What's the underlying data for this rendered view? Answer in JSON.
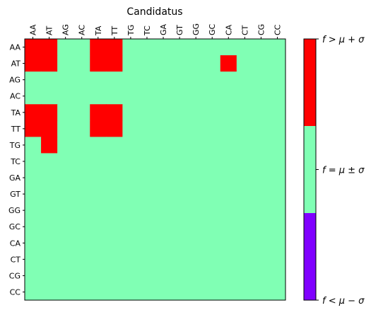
{
  "chart_data": {
    "type": "heatmap",
    "title": "Candidatus",
    "xlabel": "",
    "ylabel": "",
    "x_categories": [
      "AA",
      "AT",
      "AG",
      "AC",
      "TA",
      "TT",
      "TG",
      "TC",
      "GA",
      "GT",
      "GG",
      "GC",
      "CA",
      "CT",
      "CG",
      "CC"
    ],
    "y_categories": [
      "AA",
      "AT",
      "AG",
      "AC",
      "TA",
      "TT",
      "TG",
      "TC",
      "GA",
      "GT",
      "GG",
      "GC",
      "CA",
      "CT",
      "CG",
      "CC"
    ],
    "x_axis_position": "top",
    "grid": false,
    "color_levels": [
      {
        "value": -1,
        "color": "#8000ff",
        "label": "f < μ − σ"
      },
      {
        "value": 0,
        "color": "#80ffb4",
        "label": "f = μ ± σ"
      },
      {
        "value": 1,
        "color": "#ff0000",
        "label": "f > μ + σ"
      }
    ],
    "colorbar_ticks": [
      "f > μ + σ",
      "f = μ ± σ",
      "f < μ − σ"
    ],
    "values": [
      [
        1,
        1,
        0,
        0,
        1,
        1,
        0,
        0,
        0,
        0,
        0,
        0,
        0,
        0,
        0,
        0
      ],
      [
        1,
        1,
        0,
        0,
        1,
        1,
        0,
        0,
        0,
        0,
        0,
        0,
        1,
        0,
        0,
        0
      ],
      [
        0,
        0,
        0,
        0,
        0,
        0,
        0,
        0,
        0,
        0,
        0,
        0,
        0,
        0,
        0,
        0
      ],
      [
        0,
        0,
        0,
        0,
        0,
        0,
        0,
        0,
        0,
        0,
        0,
        0,
        0,
        0,
        0,
        0
      ],
      [
        1,
        1,
        0,
        0,
        1,
        1,
        0,
        0,
        0,
        0,
        0,
        0,
        0,
        0,
        0,
        0
      ],
      [
        1,
        1,
        0,
        0,
        1,
        1,
        0,
        0,
        0,
        0,
        0,
        0,
        0,
        0,
        0,
        0
      ],
      [
        0,
        1,
        0,
        0,
        0,
        0,
        0,
        0,
        0,
        0,
        0,
        0,
        0,
        0,
        0,
        0
      ],
      [
        0,
        0,
        0,
        0,
        0,
        0,
        0,
        0,
        0,
        0,
        0,
        0,
        0,
        0,
        0,
        0
      ],
      [
        0,
        0,
        0,
        0,
        0,
        0,
        0,
        0,
        0,
        0,
        0,
        0,
        0,
        0,
        0,
        0
      ],
      [
        0,
        0,
        0,
        0,
        0,
        0,
        0,
        0,
        0,
        0,
        0,
        0,
        0,
        0,
        0,
        0
      ],
      [
        0,
        0,
        0,
        0,
        0,
        0,
        0,
        0,
        0,
        0,
        0,
        0,
        0,
        0,
        0,
        0
      ],
      [
        0,
        0,
        0,
        0,
        0,
        0,
        0,
        0,
        0,
        0,
        0,
        0,
        0,
        0,
        0,
        0
      ],
      [
        0,
        0,
        0,
        0,
        0,
        0,
        0,
        0,
        0,
        0,
        0,
        0,
        0,
        0,
        0,
        0
      ],
      [
        0,
        0,
        0,
        0,
        0,
        0,
        0,
        0,
        0,
        0,
        0,
        0,
        0,
        0,
        0,
        0
      ],
      [
        0,
        0,
        0,
        0,
        0,
        0,
        0,
        0,
        0,
        0,
        0,
        0,
        0,
        0,
        0,
        0
      ],
      [
        0,
        0,
        0,
        0,
        0,
        0,
        0,
        0,
        0,
        0,
        0,
        0,
        0,
        0,
        0,
        0
      ]
    ]
  }
}
